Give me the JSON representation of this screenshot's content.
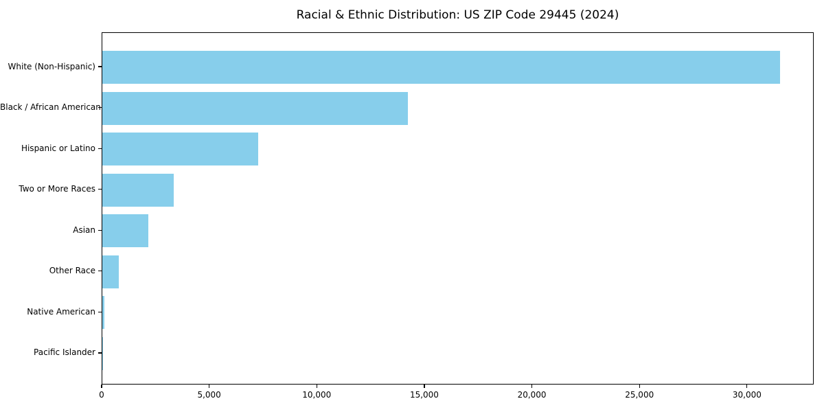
{
  "figure": {
    "title": "Racial & Ethnic Distribution: US ZIP Code 29445 (2024)",
    "background_color": "#ffffff",
    "spine_color": "#000000"
  },
  "chart_data": {
    "type": "bar",
    "orientation": "horizontal",
    "title": "Racial & Ethnic Distribution: US ZIP Code 29445 (2024)",
    "categories": [
      "White (Non-Hispanic)",
      "Black / African American",
      "Hispanic or Latino",
      "Two or More Races",
      "Asian",
      "Other Race",
      "Native American",
      "Pacific Islander"
    ],
    "values": [
      31500,
      14200,
      7250,
      3330,
      2150,
      780,
      100,
      25
    ],
    "bar_color": "#87ceeb",
    "xlabel": "",
    "ylabel": "",
    "xlim": [
      0,
      33100
    ],
    "xticks": [
      0,
      5000,
      10000,
      15000,
      20000,
      25000,
      30000
    ],
    "xtick_labels": [
      "0",
      "5,000",
      "10,000",
      "15,000",
      "20,000",
      "25,000",
      "30,000"
    ],
    "grid": false,
    "legend": null,
    "value_axis": "population count",
    "category_order": "descending by value, largest at top"
  }
}
